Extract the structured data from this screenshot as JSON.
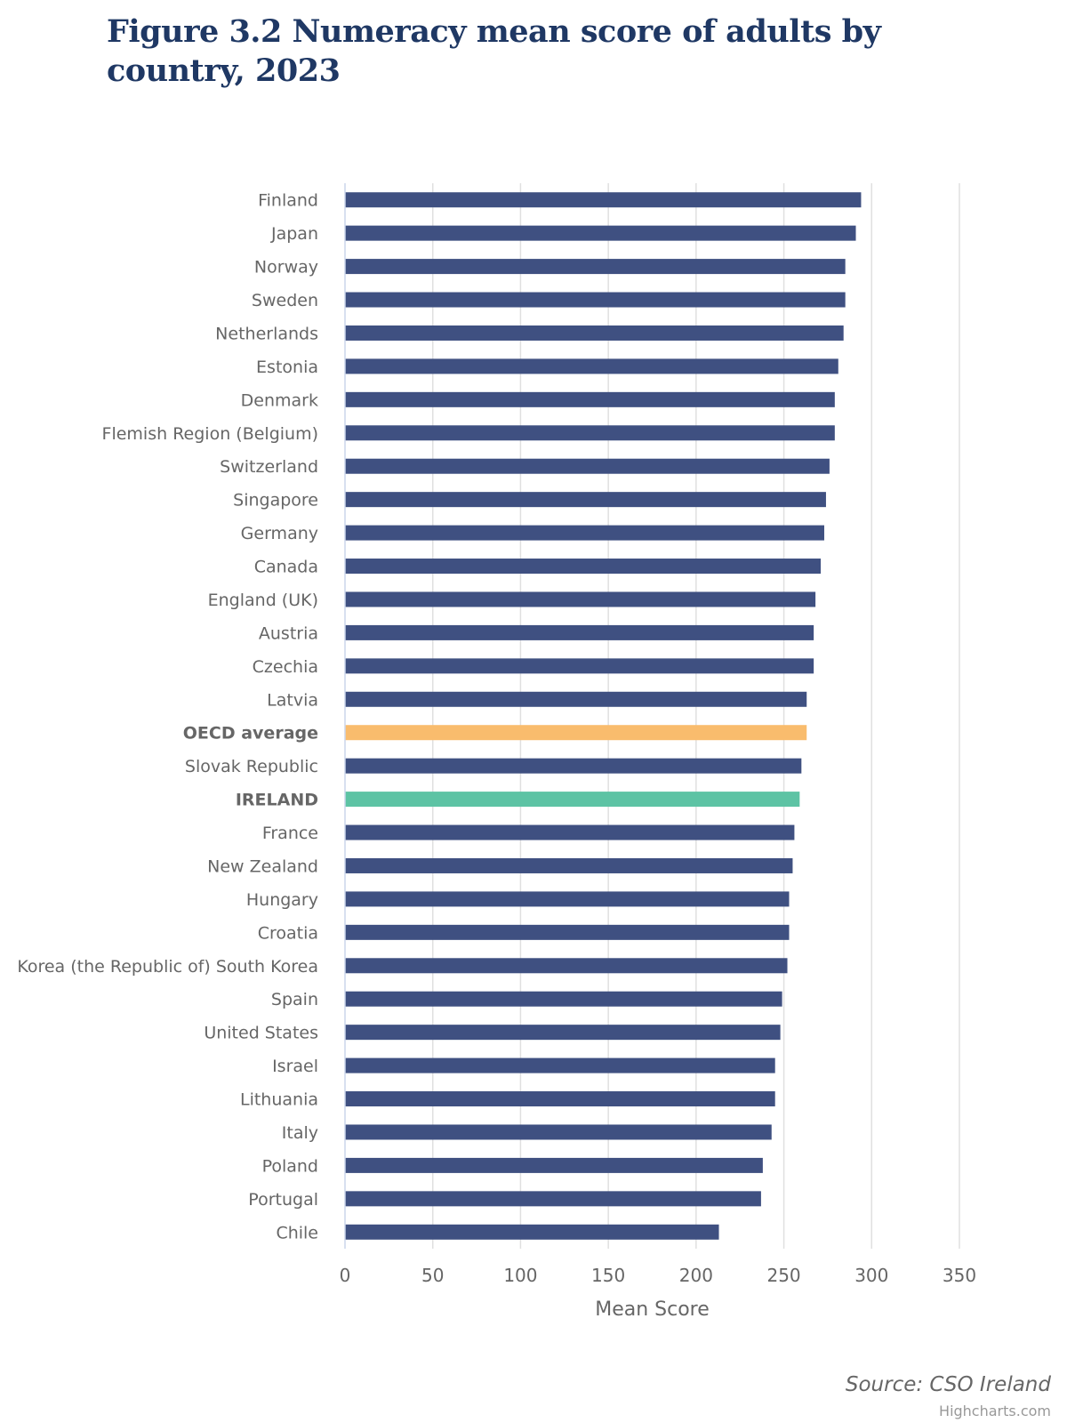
{
  "chart_data": {
    "type": "bar",
    "orientation": "horizontal",
    "title": "Figure 3.2 Numeracy mean score of adults by country, 2023",
    "xlabel": "Mean Score",
    "xlim": [
      0,
      350
    ],
    "xticks": [
      0,
      50,
      100,
      150,
      200,
      250,
      300,
      350
    ],
    "categories": [
      "Finland",
      "Japan",
      "Norway",
      "Sweden",
      "Netherlands",
      "Estonia",
      "Denmark",
      "Flemish Region (Belgium)",
      "Switzerland",
      "Singapore",
      "Germany",
      "Canada",
      "England (UK)",
      "Austria",
      "Czechia",
      "Latvia",
      "OECD average",
      "Slovak Republic",
      "IRELAND",
      "France",
      "New Zealand",
      "Hungary",
      "Croatia",
      "Korea (the Republic of) South Korea",
      "Spain",
      "United States",
      "Israel",
      "Lithuania",
      "Italy",
      "Poland",
      "Portugal",
      "Chile"
    ],
    "values": [
      294,
      291,
      285,
      285,
      284,
      281,
      279,
      279,
      276,
      274,
      273,
      271,
      268,
      267,
      267,
      263,
      263,
      260,
      259,
      256,
      255,
      253,
      253,
      252,
      249,
      248,
      245,
      245,
      243,
      238,
      237,
      213
    ],
    "highlights": {
      "OECD average": "#f9bc6d",
      "IRELAND": "#5dc3a4"
    },
    "bold_categories": [
      "OECD average",
      "IRELAND"
    ],
    "colors": {
      "default_bar": "#3f5081",
      "grid": "#e0e0e0",
      "axis": "#ccd6eb",
      "label": "#666666"
    },
    "source": "Source: CSO Ireland",
    "credits": "Highcharts.com"
  }
}
